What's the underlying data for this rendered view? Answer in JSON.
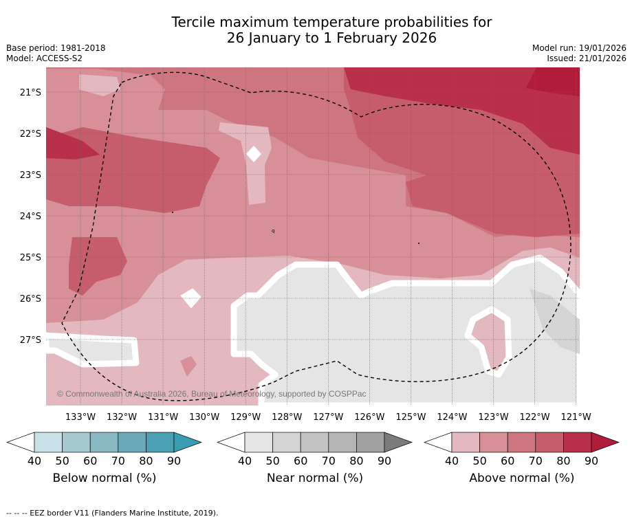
{
  "title": {
    "line1": "Tercile maximum temperature probabilities for",
    "line2": "26 January to 1 February 2026"
  },
  "meta": {
    "base_period": "Base period: 1981-2018",
    "model": "Model: ACCESS-S2",
    "model_run": "Model run: 19/01/2026",
    "issued": "Issued: 21/01/2026"
  },
  "map": {
    "lat_labels": [
      "21°S",
      "22°S",
      "23°S",
      "24°S",
      "25°S",
      "26°S",
      "27°S"
    ],
    "lon_labels": [
      "133°W",
      "132°W",
      "131°W",
      "130°W",
      "129°W",
      "128°W",
      "127°W",
      "126°W",
      "125°W",
      "124°W",
      "123°W",
      "122°W",
      "121°W"
    ],
    "copyright": "© Commonwealth of Australia 2026, Bureau of Meteorology, supported by COSPPac",
    "regions": [
      {
        "category": "above",
        "probability": "40-50"
      },
      {
        "category": "above",
        "probability": "50-60"
      },
      {
        "category": "above",
        "probability": "60-70"
      },
      {
        "category": "above",
        "probability": "70-80"
      },
      {
        "category": "above",
        "probability": "80-90"
      },
      {
        "category": "near",
        "probability": "40-50"
      }
    ],
    "eez_border": "dashed"
  },
  "colorbars": [
    {
      "label": "Below normal (%)",
      "ticks": [
        "40",
        "50",
        "60",
        "70",
        "80",
        "90"
      ],
      "colors": [
        "#c8e1e7",
        "#a6c8cf",
        "#89b8c3",
        "#6aa9b8",
        "#4b9fb2",
        "#3a9cb0"
      ]
    },
    {
      "label": "Near normal (%)",
      "ticks": [
        "40",
        "50",
        "60",
        "70",
        "80",
        "90"
      ],
      "colors": [
        "#e5e5e5",
        "#d4d4d4",
        "#c3c3c3",
        "#b5b5b5",
        "#a1a1a1",
        "#7b7b7b"
      ]
    },
    {
      "label": "Above normal (%)",
      "ticks": [
        "40",
        "50",
        "60",
        "70",
        "80",
        "90"
      ],
      "colors": [
        "#e3b9bf",
        "#d78f98",
        "#cd7680",
        "#c65d6b",
        "#b8304a",
        "#b01c3a"
      ]
    }
  ],
  "footnote": "--  --  -- EEZ border V11 (Flanders Marine Institute, 2019).",
  "colors": {
    "above_40": "#e3b9bf",
    "above_50": "#d78f98",
    "above_60": "#cd7680",
    "above_70": "#c65d6b",
    "above_80": "#b8304a",
    "near_40": "#e5e5e5"
  }
}
